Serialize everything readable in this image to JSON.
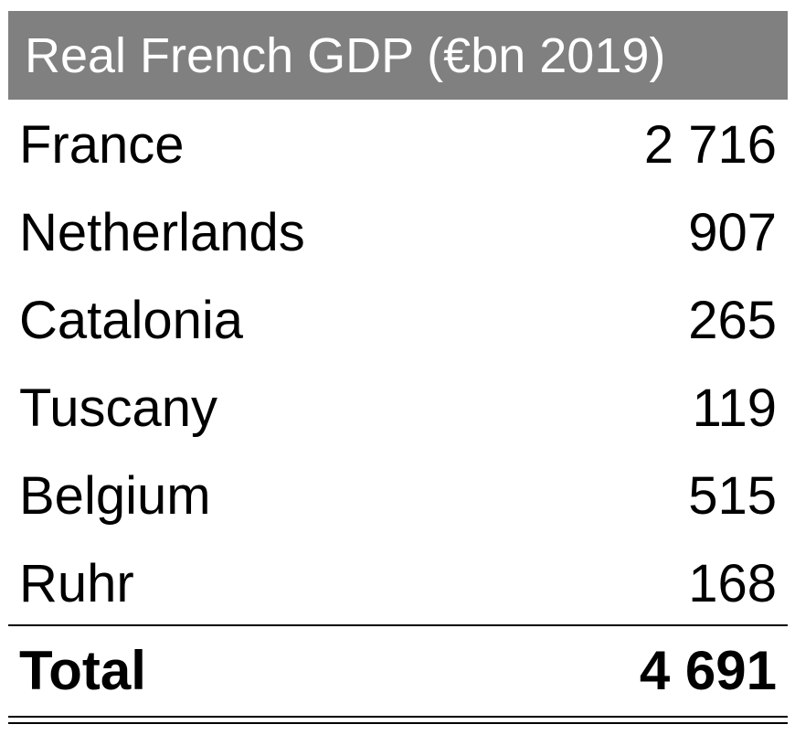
{
  "table": {
    "title": "Real French GDP (€bn 2019)",
    "rows": [
      {
        "label": "France",
        "value": "2 716"
      },
      {
        "label": "Netherlands",
        "value": "907"
      },
      {
        "label": "Catalonia",
        "value": "265"
      },
      {
        "label": "Tuscany",
        "value": "119"
      },
      {
        "label": "Belgium",
        "value": "515"
      },
      {
        "label": "Ruhr",
        "value": "168"
      }
    ],
    "total": {
      "label": "Total",
      "value": "4 691"
    },
    "colors": {
      "header_background": "#808080",
      "header_text": "#ffffff",
      "body_text": "#000000",
      "rule": "#000000"
    }
  }
}
